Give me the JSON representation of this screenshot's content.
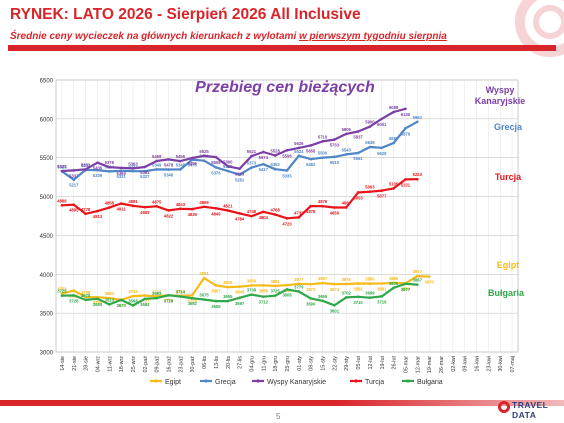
{
  "header": {
    "title": "RYNEK: LATO 2026 - Sierpień 2026 All Inclusive",
    "subtitle_main": "Średnie ceny wycieczek na głównych kierunkach  z wylotami ",
    "subtitle_underlined": "w pierwszym tygodniu sierpnia"
  },
  "footer": {
    "page_number": "5",
    "logo_line1": "TRAVEL",
    "logo_line2": "DATA"
  },
  "colors": {
    "accent": "#d9252a",
    "egipt": "#f5bb1a",
    "grecja": "#4f86c6",
    "wyspy": "#7b3fa6",
    "turcja": "#e8141a",
    "bulgaria": "#2fa84a"
  },
  "chart_data": {
    "type": "line",
    "title": "Przebieg cen bieżących",
    "ylim": [
      3000,
      6500
    ],
    "yticks": [
      "3000",
      "3500",
      "4000",
      "4500",
      "5000",
      "5500",
      "6000",
      "6500"
    ],
    "legend_position": "bottom",
    "grid": true,
    "categories": [
      "14-sie",
      "21-sie",
      "28-sie",
      "04-wrz",
      "11-wrz",
      "18-wrz",
      "25-wrz",
      "02-paź",
      "09-paź",
      "16-paź",
      "23-paź",
      "30-paź",
      "06-lis",
      "13-lis",
      "20-lis",
      "27-lis",
      "04-gru",
      "11-gru",
      "18-gru",
      "25-gru",
      "01-sty",
      "08-sty",
      "15-sty",
      "22-sty",
      "29-sty",
      "05-lut",
      "12-lut",
      "19-lut",
      "26-lut",
      "05-mar",
      "12-mar",
      "19-mar",
      "26-mar",
      "02-kwi",
      "09-kwi",
      "16-kwi",
      "23-kwi",
      "30-kwi",
      "07-maj"
    ],
    "series_labels": [
      {
        "name": "Wyspy Kanaryjskie",
        "color": "#7b3fa6"
      },
      {
        "name": "Grecja",
        "color": "#4f86c6"
      },
      {
        "name": "Turcja",
        "color": "#e8141a"
      },
      {
        "name": "Egipt",
        "color": "#f5bb1a"
      },
      {
        "name": "Bułgaria",
        "color": "#2fa84a"
      }
    ],
    "series": [
      {
        "name": "Egipt",
        "color": "#f5bb1a",
        "values": [
          3753,
          3790,
          3708,
          3705,
          3693,
          3670,
          3719,
          3727,
          3715,
          3731,
          3723,
          3729,
          3951,
          3857,
          3835,
          3840,
          3856,
          3858,
          3851,
          3860,
          3877,
          3872,
          3887,
          3874,
          3875,
          3882,
          3880,
          3881,
          3890,
          3883,
          3977,
          3970,
          null,
          null,
          null,
          null,
          null,
          null,
          null
        ]
      },
      {
        "name": "Grecja",
        "color": "#4f86c6",
        "values": [
          5325,
          5217,
          5343,
          5339,
          5324,
          5331,
          5327,
          5327,
          5349,
          5348,
          5349,
          5476,
          5461,
          5376,
          5329,
          5281,
          5373,
          5417,
          5352,
          5335,
          5524,
          5482,
          5500,
          5510,
          5543,
          5561,
          5638,
          5628,
          5689,
          5879,
          5962,
          null,
          null,
          null,
          null,
          null,
          null,
          null,
          null
        ]
      },
      {
        "name": "Wyspy Kanaryjskie",
        "color": "#7b3fa6",
        "values": [
          5329,
          5337,
          5351,
          5436,
          5378,
          5369,
          5363,
          5381,
          5458,
          5478,
          5456,
          5496,
          5525,
          5508,
          5390,
          5359,
          5521,
          5574,
          5528,
          5596,
          5626,
          5658,
          5710,
          5733,
          5806,
          5837,
          5900,
          6001,
          6088,
          6130,
          null,
          null,
          null,
          null,
          null,
          null,
          null,
          null,
          null
        ]
      },
      {
        "name": "Turcja",
        "color": "#e8141a",
        "values": [
          4888,
          4895,
          4778,
          4813,
          4858,
          4911,
          4881,
          4863,
          4875,
          4822,
          4843,
          4839,
          4869,
          4849,
          4821,
          4784,
          4748,
          4804,
          4768,
          4720,
          4732,
          4878,
          4876,
          4859,
          4860,
          5053,
          5063,
          5077,
          5105,
          5221,
          5223,
          null,
          null,
          null,
          null,
          null,
          null,
          null,
          null
        ]
      },
      {
        "name": "Bułgaria",
        "color": "#2fa84a",
        "values": [
          3725,
          3728,
          3670,
          3684,
          3613,
          3670,
          3598,
          3684,
          3693,
          3729,
          3714,
          3692,
          3675,
          3655,
          3655,
          3697,
          3738,
          3712,
          3725,
          3806,
          3779,
          3690,
          3659,
          3601,
          3702,
          3710,
          3699,
          3716,
          3826,
          3877,
          3867,
          null,
          null,
          null,
          null,
          null,
          null,
          null,
          null
        ]
      }
    ]
  }
}
